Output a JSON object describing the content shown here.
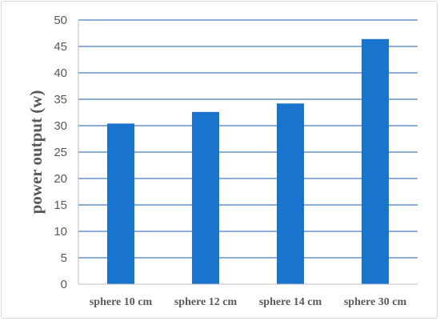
{
  "chart_data": {
    "type": "bar",
    "title": "",
    "xlabel": "",
    "ylabel": "power output  (w)",
    "categories": [
      "sphere 10 cm",
      "sphere 12 cm",
      "sphere 14 cm",
      "sphere 30 cm"
    ],
    "values": [
      30.4,
      32.6,
      34.2,
      46.4
    ],
    "ylim": [
      0,
      50
    ],
    "yticks": [
      0,
      5,
      10,
      15,
      20,
      25,
      30,
      35,
      40,
      45,
      50
    ],
    "grid": true,
    "legend": "none",
    "colors": {
      "bar": "#1874CD",
      "grid": "#1a5ea8",
      "axis": "#bfbfbf"
    }
  }
}
